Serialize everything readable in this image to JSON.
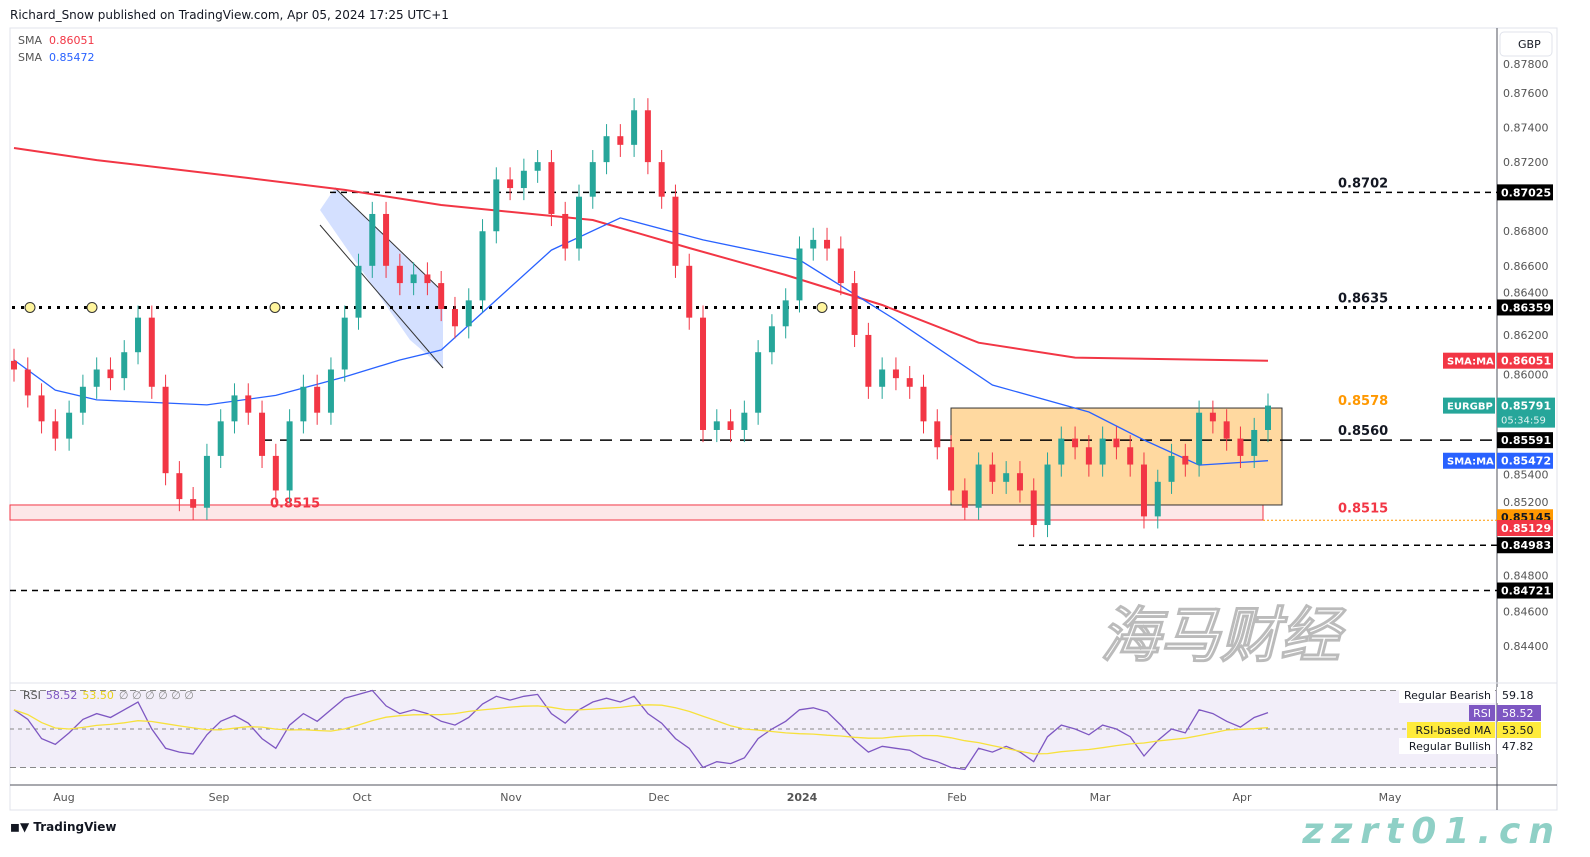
{
  "header": {
    "publisher": "Richard_Snow published on TradingView.com, Apr 05, 2024 17:25 UTC+1"
  },
  "legend": [
    {
      "name": "SMA",
      "value": "0.86051",
      "color": "#f23645"
    },
    {
      "name": "SMA",
      "value": "0.85472",
      "color": "#2962ff"
    }
  ],
  "currency": "GBP",
  "brand": "TradingView",
  "watermark": {
    "cn": "海马财经",
    "url": "zzrt01.cn"
  },
  "chart_data": {
    "type": "candlestick",
    "symbol": "EURGBP",
    "ylim": [
      0.843,
      0.8775
    ],
    "y_ticks": [
      "0.87800",
      "0.87600",
      "0.87400",
      "0.87200",
      "0.86800",
      "0.86600",
      "0.86400",
      "0.86200",
      "0.86000",
      "0.85400",
      "0.85200",
      "0.84800",
      "0.84600",
      "0.84400"
    ],
    "x_ticks": [
      "Aug",
      "Sep",
      "Oct",
      "Nov",
      "Dec",
      "2024",
      "Feb",
      "Mar",
      "Apr",
      "May"
    ],
    "closes": [
      0.86,
      0.8585,
      0.857,
      0.856,
      0.8575,
      0.859,
      0.86,
      0.8595,
      0.861,
      0.863,
      0.859,
      0.854,
      0.8525,
      0.852,
      0.855,
      0.857,
      0.8585,
      0.8575,
      0.855,
      0.853,
      0.857,
      0.859,
      0.8575,
      0.86,
      0.863,
      0.866,
      0.869,
      0.866,
      0.865,
      0.8655,
      0.865,
      0.8635,
      0.8625,
      0.864,
      0.868,
      0.871,
      0.8705,
      0.8715,
      0.872,
      0.869,
      0.867,
      0.87,
      0.872,
      0.8735,
      0.873,
      0.875,
      0.872,
      0.87,
      0.866,
      0.863,
      0.8565,
      0.857,
      0.8565,
      0.8575,
      0.861,
      0.8625,
      0.864,
      0.867,
      0.8675,
      0.867,
      0.865,
      0.862,
      0.859,
      0.86,
      0.8595,
      0.859,
      0.857,
      0.8555,
      0.853,
      0.852,
      0.8545,
      0.8535,
      0.854,
      0.853,
      0.851,
      0.8545,
      0.856,
      0.8555,
      0.8545,
      0.856,
      0.8555,
      0.8545,
      0.8515,
      0.8535,
      0.855,
      0.8545,
      0.8575,
      0.857,
      0.856,
      0.855,
      0.8565,
      0.85791
    ],
    "sma_red": {
      "label": "SMA:MA",
      "value": "0.86051",
      "color": "#f23645",
      "points": [
        [
          0,
          0.87282
        ],
        [
          6,
          0.87212
        ],
        [
          17,
          0.87108
        ],
        [
          24,
          0.87039
        ],
        [
          31,
          0.86952
        ],
        [
          42,
          0.86865
        ],
        [
          49,
          0.86703
        ],
        [
          56,
          0.86547
        ],
        [
          63,
          0.86373
        ],
        [
          70,
          0.86155
        ],
        [
          77,
          0.86069
        ],
        [
          91,
          0.86051
        ]
      ]
    },
    "sma_blue": {
      "label": "SMA:MA",
      "value": "0.85472",
      "color": "#2962ff",
      "points": [
        [
          0,
          0.86055
        ],
        [
          3,
          0.85881
        ],
        [
          6,
          0.85824
        ],
        [
          14,
          0.85795
        ],
        [
          19,
          0.8585
        ],
        [
          24,
          0.85957
        ],
        [
          28,
          0.86055
        ],
        [
          31,
          0.86113
        ],
        [
          35,
          0.86402
        ],
        [
          39,
          0.86691
        ],
        [
          44,
          0.86877
        ],
        [
          50,
          0.8675
        ],
        [
          57,
          0.86634
        ],
        [
          64,
          0.86286
        ],
        [
          71,
          0.8591
        ],
        [
          78,
          0.85754
        ],
        [
          82,
          0.85592
        ],
        [
          86,
          0.85447
        ],
        [
          91,
          0.85472
        ]
      ]
    },
    "levels": [
      {
        "label": "0.8702",
        "tag": "0.87025",
        "price": 0.87025,
        "style": "dashed"
      },
      {
        "label": "0.8635",
        "tag": "0.86359",
        "price": 0.86359,
        "style": "dotted"
      },
      {
        "label": "0.8560",
        "tag": "0.85591",
        "price": 0.85591,
        "style": "dashed"
      },
      {
        "label": "0.8515",
        "tag": "0.85145",
        "price": 0.85145,
        "style": "zone"
      },
      {
        "label": "",
        "tag": "0.84983",
        "price": 0.84983,
        "style": "dashed"
      },
      {
        "label": "",
        "tag": "0.84721",
        "price": 0.84721,
        "style": "dashed"
      }
    ],
    "zone_label_left": "0.8515",
    "zone_tag2": "0.85129",
    "range_box": {
      "label": "0.8578",
      "top": 0.85777,
      "bottom": 0.85216,
      "color": "#ffcc80"
    },
    "last": {
      "price": "0.85791",
      "countdown": "05:34:59",
      "color": "#26a69a"
    },
    "rsi": {
      "label": "RSI",
      "value": "58.52",
      "ma_value": "53.50",
      "nulls": "∅ ∅ ∅ ∅ ∅ ∅",
      "ma_label": "RSI-based MA",
      "bearish_label": "Regular Bearish",
      "bearish_value": "59.18",
      "bullish_label": "Regular Bullish",
      "bullish_value": "47.82",
      "upper": 70,
      "lower": 30,
      "values": [
        60,
        55,
        45,
        42,
        48,
        55,
        58,
        56,
        60,
        64,
        50,
        40,
        38,
        37,
        47,
        54,
        57,
        53,
        45,
        40,
        52,
        58,
        54,
        60,
        66,
        68,
        70,
        62,
        58,
        60,
        58,
        54,
        52,
        56,
        63,
        67,
        65,
        67,
        68,
        58,
        53,
        60,
        64,
        66,
        64,
        67,
        58,
        53,
        45,
        40,
        30,
        33,
        32,
        35,
        45,
        50,
        54,
        60,
        61,
        59,
        52,
        44,
        38,
        41,
        40,
        39,
        35,
        33,
        30,
        29,
        40,
        38,
        41,
        38,
        33,
        46,
        52,
        50,
        47,
        52,
        50,
        46,
        36,
        44,
        50,
        48,
        60,
        58,
        54,
        51,
        56,
        58.52
      ]
    }
  }
}
